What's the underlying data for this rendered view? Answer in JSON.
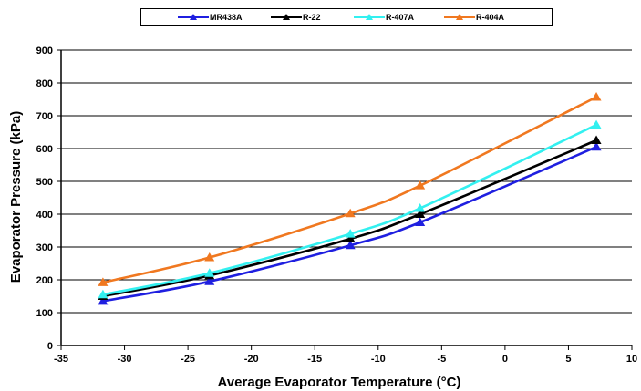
{
  "chart_data": {
    "type": "line",
    "title": "",
    "xlabel": "Average Evaporator Temperature (°C)",
    "ylabel": "Evaporator Pressure (kPa)",
    "xlim": [
      -35,
      10
    ],
    "ylim": [
      0,
      900
    ],
    "xticks": [
      -35,
      -30,
      -25,
      -20,
      -15,
      -10,
      -5,
      0,
      5,
      10
    ],
    "yticks": [
      0,
      100,
      200,
      300,
      400,
      500,
      600,
      700,
      800,
      900
    ],
    "grid": "horizontal",
    "legend": "top",
    "series": [
      {
        "name": "MR438A",
        "color": "#1f1fe0",
        "x": [
          -31.7,
          -23.3,
          -12.2,
          -6.7,
          7.2
        ],
        "y": [
          135,
          195,
          305,
          375,
          605
        ]
      },
      {
        "name": "R-22",
        "color": "#000000",
        "x": [
          -31.7,
          -23.3,
          -12.2,
          -6.7,
          7.2
        ],
        "y": [
          150,
          213,
          325,
          400,
          625
        ]
      },
      {
        "name": "R-407A",
        "color": "#33f0f0",
        "x": [
          -31.7,
          -23.3,
          -12.2,
          -6.7,
          7.2
        ],
        "y": [
          155,
          220,
          340,
          418,
          672
        ]
      },
      {
        "name": "R-404A",
        "color": "#f07820",
        "x": [
          -31.7,
          -23.3,
          -12.2,
          -6.7,
          7.2
        ],
        "y": [
          192,
          268,
          402,
          487,
          757
        ]
      }
    ]
  }
}
